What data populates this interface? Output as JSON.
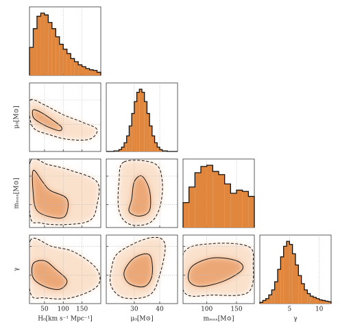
{
  "chart_data": {
    "type": "corner",
    "color": "#e0873d",
    "params": [
      {
        "label": "H₀[km s⁻¹ Mpc⁻¹]",
        "lim": [
          10,
          200
        ],
        "ticks": [
          50,
          100,
          150
        ],
        "hist": {
          "bins": [
            10,
            20,
            30,
            40,
            50,
            60,
            70,
            80,
            90,
            100,
            110,
            120,
            130,
            140,
            150,
            160,
            170,
            180,
            190,
            200
          ],
          "counts": [
            45,
            75,
            95,
            100,
            97,
            85,
            75,
            62,
            50,
            42,
            35,
            27,
            22,
            17,
            14,
            11,
            9,
            8,
            5
          ],
          "ylim": [
            0,
            110
          ]
        }
      },
      {
        "label": "μ₀[M⊙]",
        "lim": [
          19,
          47
        ],
        "ticks": [
          30,
          40
        ],
        "hist": {
          "bins": [
            19,
            20,
            21,
            22,
            23,
            24,
            25,
            26,
            27,
            28,
            29,
            30,
            31,
            32,
            33,
            34,
            35,
            36,
            37,
            38,
            39,
            40,
            41,
            42,
            43,
            44,
            45,
            46,
            47
          ],
          "counts": [
            0,
            0,
            0,
            1,
            1,
            3,
            7,
            14,
            25,
            41,
            61,
            80,
            95,
            100,
            95,
            80,
            61,
            41,
            25,
            14,
            7,
            3,
            1,
            1,
            0,
            0,
            0,
            0
          ],
          "ylim": [
            0,
            110
          ]
        }
      },
      {
        "label": "mₘₐₓ[M⊙]",
        "lim": [
          60,
          180
        ],
        "ticks": [
          100,
          150
        ],
        "hist": {
          "bins": [
            60,
            70,
            80,
            90,
            100,
            110,
            120,
            130,
            140,
            150,
            160,
            170,
            180
          ],
          "counts": [
            40,
            65,
            88,
            98,
            100,
            90,
            85,
            70,
            55,
            60,
            58,
            50
          ],
          "ylim": [
            0,
            110
          ]
        }
      },
      {
        "label": "γ",
        "lim": [
          0,
          12
        ],
        "ticks": [
          5,
          10
        ],
        "hist": {
          "bins": [
            0,
            0.5,
            1,
            1.5,
            2,
            2.5,
            3,
            3.5,
            4,
            4.5,
            5,
            5.5,
            6,
            6.5,
            7,
            7.5,
            8,
            8.5,
            9,
            9.5,
            10,
            10.5,
            11,
            11.5,
            12
          ],
          "counts": [
            2,
            5,
            8,
            14,
            22,
            35,
            55,
            75,
            92,
            100,
            95,
            80,
            62,
            45,
            32,
            22,
            16,
            12,
            10,
            8,
            6,
            5,
            4,
            3
          ],
          "ylim": [
            0,
            110
          ]
        }
      }
    ],
    "pairs": [
      {
        "contour_68": [
          [
            20,
            36
          ],
          [
            40,
            35
          ],
          [
            70,
            32
          ],
          [
            95,
            29
          ],
          [
            90,
            27.5
          ],
          [
            60,
            29
          ],
          [
            35,
            31
          ],
          [
            20,
            33
          ]
        ],
        "contour_95": [
          [
            12,
            40
          ],
          [
            50,
            38
          ],
          [
            100,
            34
          ],
          [
            150,
            31
          ],
          [
            190,
            28
          ],
          [
            170,
            24
          ],
          [
            110,
            24
          ],
          [
            60,
            26
          ],
          [
            25,
            28
          ],
          [
            12,
            32
          ]
        ]
      },
      {
        "contour_68": [
          [
            20,
            160
          ],
          [
            45,
            140
          ],
          [
            65,
            125
          ],
          [
            110,
            110
          ],
          [
            105,
            80
          ],
          [
            70,
            78
          ],
          [
            30,
            90
          ],
          [
            20,
            120
          ]
        ],
        "contour_95": [
          [
            12,
            175
          ],
          [
            60,
            170
          ],
          [
            120,
            160
          ],
          [
            190,
            140
          ],
          [
            190,
            100
          ],
          [
            170,
            72
          ],
          [
            100,
            65
          ],
          [
            40,
            68
          ],
          [
            12,
            80
          ]
        ]
      },
      {
        "contour_68": [
          [
            33,
            150
          ],
          [
            36,
            125
          ],
          [
            36,
            90
          ],
          [
            32,
            80
          ],
          [
            28,
            88
          ],
          [
            29,
            110
          ],
          [
            30,
            140
          ]
        ],
        "contour_95": [
          [
            26,
            175
          ],
          [
            38,
            172
          ],
          [
            41,
            140
          ],
          [
            40,
            95
          ],
          [
            36,
            68
          ],
          [
            28,
            66
          ],
          [
            24,
            90
          ],
          [
            24,
            140
          ]
        ]
      },
      {
        "contour_68": [
          [
            20,
            7
          ],
          [
            50,
            7.5
          ],
          [
            80,
            6
          ],
          [
            110,
            4
          ],
          [
            90,
            2.5
          ],
          [
            50,
            3
          ],
          [
            20,
            4.5
          ]
        ],
        "contour_95": [
          [
            12,
            11
          ],
          [
            70,
            10
          ],
          [
            130,
            9
          ],
          [
            190,
            6
          ],
          [
            190,
            3
          ],
          [
            120,
            1
          ],
          [
            50,
            1
          ],
          [
            12,
            2
          ]
        ]
      },
      {
        "contour_68": [
          [
            30,
            8
          ],
          [
            36,
            8.5
          ],
          [
            37,
            5
          ],
          [
            34,
            3
          ],
          [
            28,
            3.5
          ],
          [
            26,
            5.5
          ]
        ],
        "contour_95": [
          [
            24,
            9
          ],
          [
            36,
            11.5
          ],
          [
            42,
            10.5
          ],
          [
            40,
            5
          ],
          [
            36,
            1.5
          ],
          [
            26,
            1
          ],
          [
            21,
            3
          ],
          [
            21,
            6
          ]
        ]
      },
      {
        "contour_68": [
          [
            75,
            6.5
          ],
          [
            110,
            8
          ],
          [
            150,
            7.5
          ],
          [
            160,
            6
          ],
          [
            130,
            4
          ],
          [
            90,
            3
          ],
          [
            70,
            4
          ]
        ],
        "contour_95": [
          [
            62,
            9
          ],
          [
            110,
            10.5
          ],
          [
            170,
            10
          ],
          [
            178,
            7
          ],
          [
            170,
            2
          ],
          [
            110,
            1.5
          ],
          [
            62,
            2
          ]
        ]
      }
    ]
  }
}
